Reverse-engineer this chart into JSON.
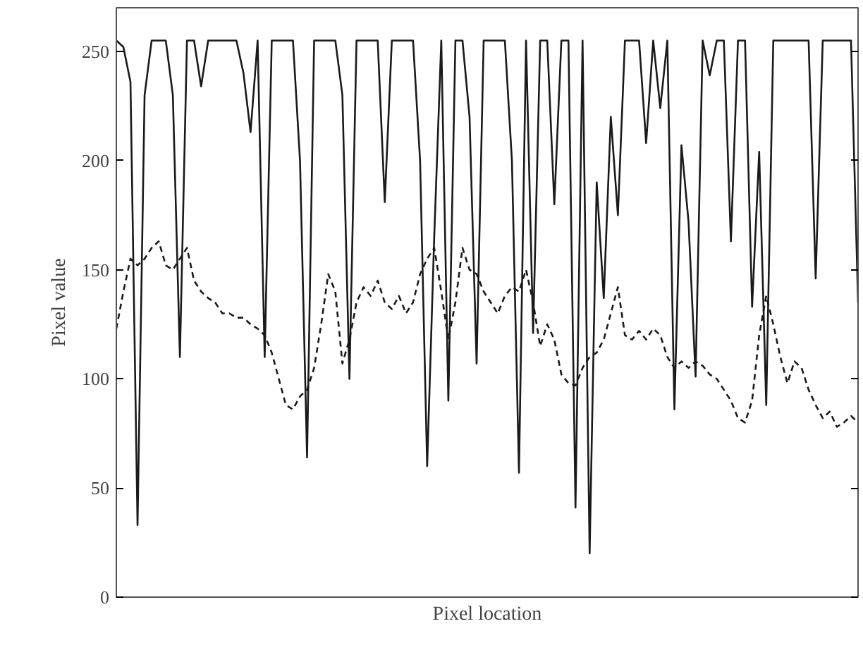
{
  "chart_data": {
    "type": "line",
    "xlabel": "Pixel location",
    "ylabel": "Pixel value",
    "categories": [
      null,
      null,
      null,
      null,
      null,
      null,
      null,
      null,
      null,
      null,
      null,
      null,
      null,
      null,
      null,
      null,
      null,
      null,
      null,
      null,
      null,
      null,
      null,
      null,
      null,
      null,
      null,
      null,
      null,
      null,
      null,
      null,
      null,
      null,
      null,
      null,
      null,
      null,
      null,
      null,
      null,
      null,
      null,
      null,
      null,
      null,
      null,
      null,
      null,
      null,
      null,
      null,
      null,
      null,
      null,
      null,
      null,
      null,
      null,
      null,
      null,
      null,
      null,
      null,
      null,
      null,
      null,
      null,
      null,
      null,
      null,
      null,
      null,
      null,
      null,
      null,
      null,
      null,
      null,
      null,
      null,
      null,
      null,
      null,
      null,
      null,
      null,
      null,
      null,
      null,
      null,
      null,
      null,
      null,
      null,
      null,
      null,
      null,
      null,
      null,
      null,
      null,
      null,
      null,
      null,
      null
    ],
    "series": [
      {
        "color": "#1a1a1a",
        "line_style": "solid",
        "values": [
          255,
          252,
          236,
          33,
          230,
          255,
          255,
          255,
          230,
          110,
          255,
          255,
          234,
          255,
          255,
          255,
          255,
          255,
          240,
          213,
          255,
          110,
          255,
          255,
          255,
          255,
          200,
          64,
          255,
          255,
          255,
          255,
          230,
          100,
          255,
          255,
          255,
          255,
          181,
          255,
          255,
          255,
          255,
          200,
          60,
          165,
          255,
          90,
          255,
          255,
          220,
          107,
          255,
          255,
          255,
          255,
          200,
          57,
          255,
          121,
          255,
          255,
          180,
          255,
          255,
          41,
          255,
          20,
          190,
          137,
          220,
          175,
          255,
          255,
          255,
          208,
          255,
          224,
          255,
          86,
          207,
          172,
          101,
          255,
          239,
          255,
          255,
          163,
          255,
          255,
          133,
          204,
          88,
          255,
          255,
          255,
          255,
          255,
          255,
          146,
          255,
          255,
          255,
          255,
          255,
          135
        ]
      },
      {
        "color": "#1a1a1a",
        "line_style": "dashed",
        "values": [
          123,
          140,
          155,
          152,
          155,
          160,
          163,
          152,
          150,
          155,
          160,
          145,
          140,
          137,
          135,
          130,
          130,
          128,
          128,
          125,
          123,
          120,
          112,
          100,
          88,
          86,
          92,
          95,
          105,
          125,
          148,
          140,
          107,
          118,
          135,
          142,
          138,
          145,
          135,
          132,
          138,
          130,
          135,
          148,
          155,
          160,
          140,
          118,
          135,
          160,
          150,
          148,
          140,
          135,
          130,
          138,
          142,
          140,
          150,
          135,
          115,
          125,
          118,
          102,
          98,
          97,
          105,
          110,
          112,
          118,
          130,
          142,
          120,
          118,
          122,
          118,
          123,
          120,
          110,
          105,
          108,
          105,
          108,
          106,
          102,
          100,
          95,
          90,
          82,
          80,
          90,
          120,
          138,
          125,
          110,
          98,
          108,
          105,
          95,
          88,
          82,
          85,
          78,
          80,
          83,
          80
        ]
      }
    ],
    "ylim": [
      0,
      270
    ],
    "yticks": [
      0,
      50,
      100,
      150,
      200,
      250
    ],
    "grid": false,
    "tick_labels": "y"
  }
}
